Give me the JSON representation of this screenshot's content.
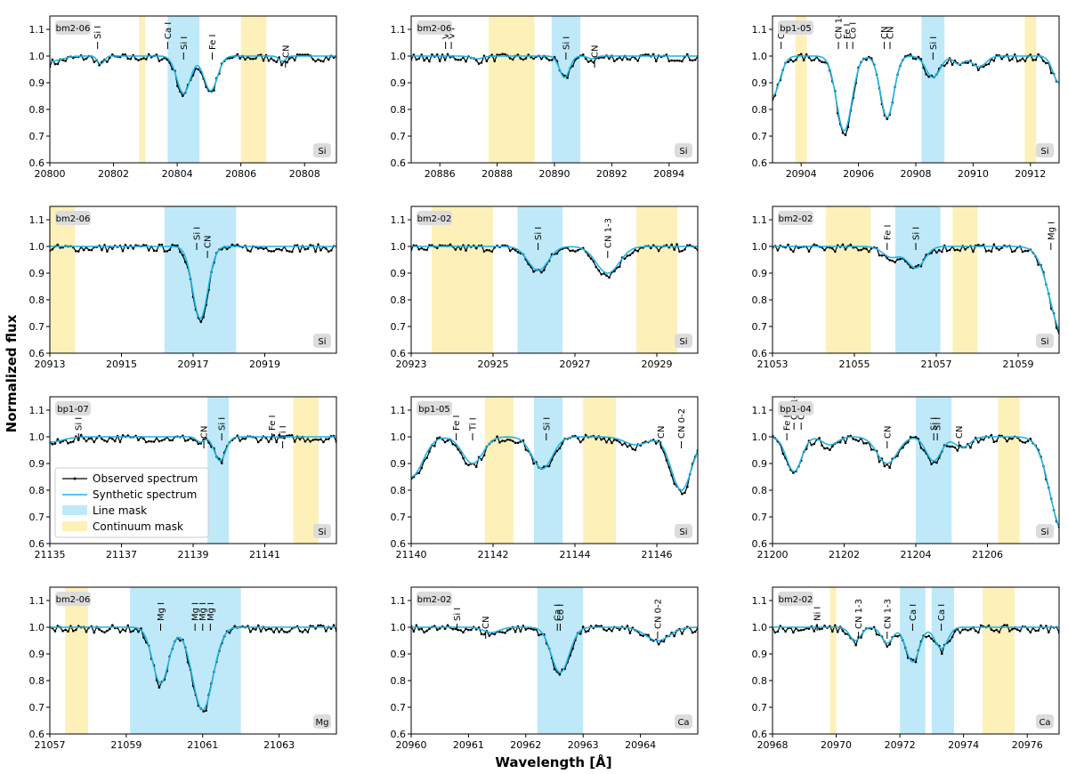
{
  "figure": {
    "xlabel": "Wavelength [Å]",
    "ylabel": "Normalized flux",
    "legend": [
      "Observed spectrum",
      "Synthetic spectrum",
      "Line mask",
      "Continuum mask"
    ],
    "colors": {
      "observed": "#000000",
      "synthetic": "#1fb4e6",
      "line_mask": "#bfe9f8",
      "continuum_mask": "#fdf0b9",
      "badge_bg": "#dcdcdc"
    }
  },
  "chart_data": [
    {
      "type": "line",
      "star": "bm2-06",
      "element": "Si",
      "xlim": [
        20800,
        20809
      ],
      "ylim": [
        0.6,
        1.15
      ],
      "xticks": [
        20800,
        20802,
        20804,
        20806,
        20808
      ],
      "yticks": [
        0.6,
        0.7,
        0.8,
        0.9,
        1.0,
        1.1
      ],
      "line_masks": [
        [
          20803.7,
          20804.7
        ]
      ],
      "continuum_masks": [
        [
          20802.8,
          20803.0
        ],
        [
          20806.0,
          20806.8
        ]
      ],
      "labels": [
        {
          "x": 20801.5,
          "text": "Si I",
          "level": "high"
        },
        {
          "x": 20803.7,
          "text": "Ca I",
          "level": "high"
        },
        {
          "x": 20804.2,
          "text": "Si I",
          "level": "mid"
        },
        {
          "x": 20805.1,
          "text": "Fe I",
          "level": "mid"
        },
        {
          "x": 20807.4,
          "text": "CN",
          "level": "low"
        }
      ],
      "profiles": [
        {
          "c": 20801.6,
          "d": 0.03,
          "w": 0.15
        },
        {
          "c": 20804.2,
          "d": 0.14,
          "w": 0.3
        },
        {
          "c": 20805.05,
          "d": 0.13,
          "w": 0.3
        },
        {
          "c": 20807.3,
          "d": 0.02,
          "w": 0.15
        }
      ],
      "edge": 0.02
    },
    {
      "type": "line",
      "star": "bm2-06",
      "element": "Si",
      "xlim": [
        20885,
        20895
      ],
      "ylim": [
        0.6,
        1.15
      ],
      "xticks": [
        20886,
        20888,
        20890,
        20892,
        20894
      ],
      "yticks": [
        0.6,
        0.7,
        0.8,
        0.9,
        1.0,
        1.1
      ],
      "line_masks": [
        [
          20889.9,
          20890.9
        ]
      ],
      "continuum_masks": [
        [
          20887.7,
          20889.3
        ]
      ],
      "labels": [
        {
          "x": 20886.2,
          "text": "V I",
          "level": "high"
        },
        {
          "x": 20886.4,
          "text": "V I",
          "level": "high"
        },
        {
          "x": 20890.4,
          "text": "Si I",
          "level": "mid"
        },
        {
          "x": 20891.4,
          "text": "CN",
          "level": "low"
        }
      ],
      "profiles": [
        {
          "c": 20890.35,
          "d": 0.08,
          "w": 0.25
        },
        {
          "c": 20887.3,
          "d": 0.01,
          "w": 0.3
        },
        {
          "c": 20891.3,
          "d": 0.01,
          "w": 0.2
        }
      ],
      "edge": 0.0
    },
    {
      "type": "line",
      "star": "bp1-05",
      "element": "Si",
      "xlim": [
        20903,
        20913
      ],
      "ylim": [
        0.6,
        1.15
      ],
      "xticks": [
        20904,
        20906,
        20908,
        20910,
        20912
      ],
      "yticks": [
        0.6,
        0.7,
        0.8,
        0.9,
        1.0,
        1.1
      ],
      "line_masks": [
        [
          20908.2,
          20909.0
        ]
      ],
      "continuum_masks": [
        [
          20903.8,
          20904.2
        ],
        [
          20911.8,
          20912.2
        ]
      ],
      "labels": [
        {
          "x": 20903.3,
          "text": "CN",
          "level": "high"
        },
        {
          "x": 20905.3,
          "text": "CN 1-3",
          "level": "high"
        },
        {
          "x": 20905.6,
          "text": "Fe I",
          "level": "high"
        },
        {
          "x": 20905.8,
          "text": "Co I",
          "level": "high"
        },
        {
          "x": 20906.9,
          "text": "CN",
          "level": "high"
        },
        {
          "x": 20907.1,
          "text": "CN",
          "level": "high"
        },
        {
          "x": 20908.6,
          "text": "Si I",
          "level": "mid"
        }
      ],
      "profiles": [
        {
          "c": 20903.0,
          "d": 0.15,
          "w": 0.35
        },
        {
          "c": 20905.5,
          "d": 0.28,
          "w": 0.38
        },
        {
          "c": 20907.0,
          "d": 0.23,
          "w": 0.33
        },
        {
          "c": 20908.6,
          "d": 0.08,
          "w": 0.35
        },
        {
          "c": 20909.5,
          "d": 0.03,
          "w": 0.25
        },
        {
          "c": 20910.2,
          "d": 0.04,
          "w": 0.35
        },
        {
          "c": 20913.0,
          "d": 0.1,
          "w": 0.3
        }
      ],
      "edge": 0.0
    },
    {
      "type": "line",
      "star": "bm2-06",
      "element": "Si",
      "xlim": [
        20913,
        20921
      ],
      "ylim": [
        0.6,
        1.15
      ],
      "xticks": [
        20913,
        20915,
        20917,
        20919
      ],
      "yticks": [
        0.6,
        0.7,
        0.8,
        0.9,
        1.0,
        1.1
      ],
      "line_masks": [
        [
          20916.2,
          20918.2
        ]
      ],
      "continuum_masks": [
        [
          20913.0,
          20913.7
        ]
      ],
      "labels": [
        {
          "x": 20917.1,
          "text": "Si I",
          "level": "mid"
        },
        {
          "x": 20917.4,
          "text": "CN",
          "level": "low"
        }
      ],
      "profiles": [
        {
          "c": 20917.2,
          "d": 0.27,
          "w": 0.3
        }
      ],
      "edge": 0.0
    },
    {
      "type": "line",
      "star": "bm2-02",
      "element": "Si",
      "xlim": [
        20923,
        20930
      ],
      "ylim": [
        0.6,
        1.15
      ],
      "xticks": [
        20923,
        20925,
        20927,
        20929
      ],
      "yticks": [
        0.6,
        0.7,
        0.8,
        0.9,
        1.0,
        1.1
      ],
      "line_masks": [
        [
          20925.6,
          20926.7
        ]
      ],
      "continuum_masks": [
        [
          20923.5,
          20925.0
        ],
        [
          20928.5,
          20929.5
        ]
      ],
      "labels": [
        {
          "x": 20926.1,
          "text": "Si I",
          "level": "mid"
        },
        {
          "x": 20927.8,
          "text": "CN 1-3",
          "level": "low"
        }
      ],
      "profiles": [
        {
          "c": 20926.1,
          "d": 0.09,
          "w": 0.35
        },
        {
          "c": 20927.8,
          "d": 0.1,
          "w": 0.4
        }
      ],
      "edge": 0.0
    },
    {
      "type": "line",
      "star": "bm2-02",
      "element": "Si",
      "xlim": [
        21053,
        21060
      ],
      "ylim": [
        0.6,
        1.15
      ],
      "xticks": [
        21053,
        21055,
        21057,
        21059
      ],
      "yticks": [
        0.6,
        0.7,
        0.8,
        0.9,
        1.0,
        1.1
      ],
      "line_masks": [
        [
          21056.0,
          21057.1
        ]
      ],
      "continuum_masks": [
        [
          21054.3,
          21055.4
        ],
        [
          21057.4,
          21058.0
        ]
      ],
      "labels": [
        {
          "x": 21055.8,
          "text": "Fe I",
          "level": "mid"
        },
        {
          "x": 21056.5,
          "text": "Si I",
          "level": "mid"
        },
        {
          "x": 21059.8,
          "text": "Mg I",
          "level": "mid"
        }
      ],
      "profiles": [
        {
          "c": 21055.9,
          "d": 0.04,
          "w": 0.3
        },
        {
          "c": 21056.5,
          "d": 0.08,
          "w": 0.3
        },
        {
          "c": 21060.1,
          "d": 0.33,
          "w": 0.45
        }
      ],
      "edge": 0.0
    },
    {
      "type": "line",
      "star": "bp1-07",
      "element": "Si",
      "xlim": [
        21135,
        21143
      ],
      "ylim": [
        0.6,
        1.15
      ],
      "xticks": [
        21135,
        21137,
        21139,
        21141
      ],
      "yticks": [
        0.6,
        0.7,
        0.8,
        0.9,
        1.0,
        1.1
      ],
      "line_masks": [
        [
          21139.4,
          21140.0
        ]
      ],
      "continuum_masks": [
        [
          21141.8,
          21142.5
        ]
      ],
      "labels": [
        {
          "x": 21135.8,
          "text": "Si I",
          "level": "mid"
        },
        {
          "x": 21139.3,
          "text": "CN",
          "level": "low"
        },
        {
          "x": 21139.8,
          "text": "Si I",
          "level": "mid"
        },
        {
          "x": 21141.2,
          "text": "Fe I",
          "level": "mid"
        },
        {
          "x": 21141.5,
          "text": "Ti I",
          "level": "low"
        }
      ],
      "profiles": [
        {
          "c": 21139.75,
          "d": 0.09,
          "w": 0.22
        },
        {
          "c": 21139.2,
          "d": 0.02,
          "w": 0.15
        }
      ],
      "edge": 0.02
    },
    {
      "type": "line",
      "star": "bp1-05",
      "element": "Si",
      "xlim": [
        21140,
        21147
      ],
      "ylim": [
        0.6,
        1.15
      ],
      "xticks": [
        21140,
        21142,
        21144,
        21146
      ],
      "yticks": [
        0.6,
        0.7,
        0.8,
        0.9,
        1.0,
        1.1
      ],
      "line_masks": [
        [
          21143.0,
          21143.7
        ]
      ],
      "continuum_masks": [
        [
          21141.8,
          21142.5
        ],
        [
          21144.2,
          21145.0
        ]
      ],
      "labels": [
        {
          "x": 21141.1,
          "text": "Fe I",
          "level": "mid"
        },
        {
          "x": 21141.5,
          "text": "Ti I",
          "level": "mid"
        },
        {
          "x": 21143.3,
          "text": "Si I",
          "level": "mid"
        },
        {
          "x": 21146.1,
          "text": "CN",
          "level": "low"
        },
        {
          "x": 21146.6,
          "text": "CN 0-2",
          "level": "low"
        }
      ],
      "profiles": [
        {
          "c": 21140.0,
          "d": 0.15,
          "w": 0.4
        },
        {
          "c": 21141.5,
          "d": 0.1,
          "w": 0.35
        },
        {
          "c": 21143.2,
          "d": 0.12,
          "w": 0.35
        },
        {
          "c": 21146.6,
          "d": 0.2,
          "w": 0.35
        },
        {
          "c": 21145.5,
          "d": 0.03,
          "w": 0.4
        }
      ],
      "edge": 0.0
    },
    {
      "type": "line",
      "star": "bp1-04",
      "element": "Si",
      "xlim": [
        21200,
        21208
      ],
      "ylim": [
        0.6,
        1.15
      ],
      "xticks": [
        21200,
        21202,
        21204,
        21206
      ],
      "yticks": [
        0.6,
        0.7,
        0.8,
        0.9,
        1.0,
        1.1
      ],
      "line_masks": [
        [
          21204.0,
          21205.0
        ]
      ],
      "continuum_masks": [
        [
          21206.3,
          21206.9
        ]
      ],
      "labels": [
        {
          "x": 21200.4,
          "text": "Fe I",
          "level": "mid"
        },
        {
          "x": 21200.6,
          "text": "CN 1-3",
          "level": "high"
        },
        {
          "x": 21200.8,
          "text": "CN",
          "level": "high"
        },
        {
          "x": 21203.2,
          "text": "CN",
          "level": "low"
        },
        {
          "x": 21204.5,
          "text": "Si I",
          "level": "mid"
        },
        {
          "x": 21204.6,
          "text": "Si I",
          "level": "mid"
        },
        {
          "x": 21205.2,
          "text": "CN",
          "level": "low"
        }
      ],
      "profiles": [
        {
          "c": 21200.6,
          "d": 0.13,
          "w": 0.3
        },
        {
          "c": 21203.2,
          "d": 0.1,
          "w": 0.4
        },
        {
          "c": 21204.5,
          "d": 0.09,
          "w": 0.3
        },
        {
          "c": 21205.3,
          "d": 0.04,
          "w": 0.3
        },
        {
          "c": 21208.1,
          "d": 0.35,
          "w": 0.5
        },
        {
          "c": 21201.6,
          "d": 0.03,
          "w": 0.3
        }
      ],
      "edge": 0.0
    },
    {
      "type": "line",
      "star": "bm2-06",
      "element": "Mg",
      "xlim": [
        21057,
        21064.5
      ],
      "ylim": [
        0.6,
        1.15
      ],
      "xticks": [
        21057,
        21059,
        21061,
        21063
      ],
      "yticks": [
        0.6,
        0.7,
        0.8,
        0.9,
        1.0,
        1.1
      ],
      "line_masks": [
        [
          21059.1,
          21062.0
        ]
      ],
      "continuum_masks": [
        [
          21057.4,
          21058.0
        ]
      ],
      "labels": [
        {
          "x": 21059.9,
          "text": "Mg I",
          "level": "mid"
        },
        {
          "x": 21060.8,
          "text": "Mg I",
          "level": "mid"
        },
        {
          "x": 21061.0,
          "text": "Mg I",
          "level": "mid"
        },
        {
          "x": 21061.2,
          "text": "Mg I",
          "level": "mid"
        }
      ],
      "profiles": [
        {
          "c": 21059.9,
          "d": 0.21,
          "w": 0.3
        },
        {
          "c": 21061.0,
          "d": 0.31,
          "w": 0.38
        }
      ],
      "edge": 0.0
    },
    {
      "type": "line",
      "star": "bm2-02",
      "element": "Ca",
      "xlim": [
        20960,
        20965
      ],
      "ylim": [
        0.6,
        1.15
      ],
      "xticks": [
        20960,
        20961,
        20962,
        20963,
        20964
      ],
      "yticks": [
        0.6,
        0.7,
        0.8,
        0.9,
        1.0,
        1.1
      ],
      "line_masks": [
        [
          20962.2,
          20963.0
        ]
      ],
      "continuum_masks": [],
      "labels": [
        {
          "x": 20960.8,
          "text": "Si I",
          "level": "mid"
        },
        {
          "x": 20961.3,
          "text": "CN",
          "level": "low"
        },
        {
          "x": 20962.55,
          "text": "Ca I",
          "level": "mid"
        },
        {
          "x": 20962.6,
          "text": "Co I",
          "level": "mid"
        },
        {
          "x": 20964.3,
          "text": "CN 0-2",
          "level": "low"
        }
      ],
      "profiles": [
        {
          "c": 20962.6,
          "d": 0.17,
          "w": 0.22
        },
        {
          "c": 20961.4,
          "d": 0.02,
          "w": 0.2
        },
        {
          "c": 20964.3,
          "d": 0.05,
          "w": 0.3
        }
      ],
      "edge": 0.0
    },
    {
      "type": "line",
      "star": "bm2-02",
      "element": "Ca",
      "xlim": [
        20968,
        20977
      ],
      "ylim": [
        0.6,
        1.15
      ],
      "xticks": [
        20968,
        20970,
        20972,
        20974,
        20976
      ],
      "yticks": [
        0.6,
        0.7,
        0.8,
        0.9,
        1.0,
        1.1
      ],
      "line_masks": [
        [
          20972.0,
          20972.8
        ],
        [
          20973.0,
          20973.7
        ]
      ],
      "continuum_masks": [
        [
          20969.8,
          20970.0
        ],
        [
          20974.6,
          20975.6
        ]
      ],
      "labels": [
        {
          "x": 20969.4,
          "text": "Ni I",
          "level": "mid"
        },
        {
          "x": 20970.7,
          "text": "CN 1-3",
          "level": "low"
        },
        {
          "x": 20971.6,
          "text": "CN 1-3",
          "level": "low"
        },
        {
          "x": 20972.4,
          "text": "Ca I",
          "level": "mid"
        },
        {
          "x": 20973.3,
          "text": "Ca I",
          "level": "mid"
        }
      ],
      "profiles": [
        {
          "c": 20972.4,
          "d": 0.13,
          "w": 0.3
        },
        {
          "c": 20973.3,
          "d": 0.08,
          "w": 0.28
        },
        {
          "c": 20970.6,
          "d": 0.05,
          "w": 0.25
        },
        {
          "c": 20971.6,
          "d": 0.06,
          "w": 0.25
        }
      ],
      "edge": 0.0
    }
  ]
}
